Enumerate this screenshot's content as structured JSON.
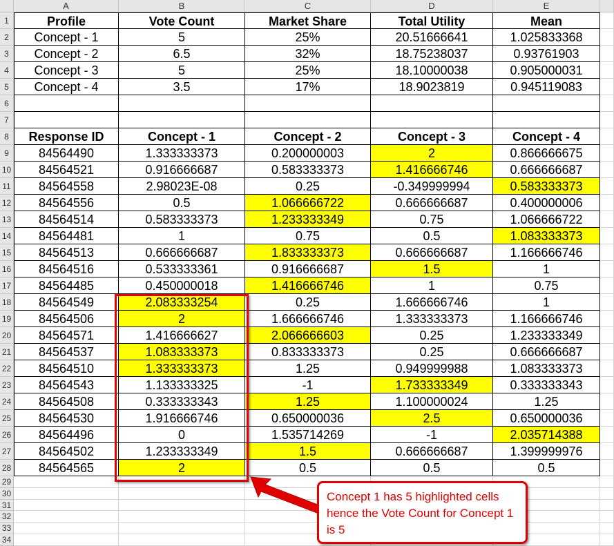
{
  "columns": [
    "A",
    "B",
    "C",
    "D",
    "E"
  ],
  "summary": {
    "headers": [
      "Profile",
      "Vote Count",
      "Market Share",
      "Total Utility",
      "Mean"
    ],
    "rows": [
      [
        "Concept - 1",
        "5",
        "25%",
        "20.51666641",
        "1.025833368"
      ],
      [
        "Concept - 2",
        "6.5",
        "32%",
        "18.75238037",
        "0.93761903"
      ],
      [
        "Concept - 3",
        "5",
        "25%",
        "18.10000038",
        "0.905000031"
      ],
      [
        "Concept - 4",
        "3.5",
        "17%",
        "18.9023819",
        "0.945119083"
      ]
    ]
  },
  "responses": {
    "headers": [
      "Response ID",
      "Concept - 1",
      "Concept - 2",
      "Concept - 3",
      "Concept - 4"
    ],
    "rows": [
      [
        "84564490",
        "1.333333373",
        "0.200000003",
        "2",
        "0.866666675"
      ],
      [
        "84564521",
        "0.916666687",
        "0.583333373",
        "1.416666746",
        "0.666666687"
      ],
      [
        "84564558",
        "2.98023E-08",
        "0.25",
        "-0.349999994",
        "0.583333373"
      ],
      [
        "84564556",
        "0.5",
        "1.066666722",
        "0.666666687",
        "0.400000006"
      ],
      [
        "84564514",
        "0.583333373",
        "1.233333349",
        "0.75",
        "1.066666722"
      ],
      [
        "84564481",
        "1",
        "0.75",
        "0.5",
        "1.083333373"
      ],
      [
        "84564513",
        "0.666666687",
        "1.833333373",
        "0.666666687",
        "1.166666746"
      ],
      [
        "84564516",
        "0.533333361",
        "0.916666687",
        "1.5",
        "1"
      ],
      [
        "84564485",
        "0.450000018",
        "1.416666746",
        "1",
        "0.75"
      ],
      [
        "84564549",
        "2.083333254",
        "0.25",
        "1.666666746",
        "1"
      ],
      [
        "84564506",
        "2",
        "1.666666746",
        "1.333333373",
        "1.166666746"
      ],
      [
        "84564571",
        "1.416666627",
        "2.066666603",
        "0.25",
        "1.233333349"
      ],
      [
        "84564537",
        "1.083333373",
        "0.833333373",
        "0.25",
        "0.666666687"
      ],
      [
        "84564510",
        "1.333333373",
        "1.25",
        "0.949999988",
        "1.083333373"
      ],
      [
        "84564543",
        "1.133333325",
        "-1",
        "1.733333349",
        "0.333333343"
      ],
      [
        "84564508",
        "0.333333343",
        "1.25",
        "1.100000024",
        "1.25"
      ],
      [
        "84564530",
        "1.916666746",
        "0.650000036",
        "2.5",
        "0.650000036"
      ],
      [
        "84564496",
        "0",
        "1.535714269",
        "-1",
        "2.035714388"
      ],
      [
        "84564502",
        "1.233333349",
        "1.5",
        "0.666666687",
        "1.399999976"
      ],
      [
        "84564565",
        "2",
        "0.5",
        "0.5",
        "0.5"
      ]
    ],
    "highlighted_column": [
      3,
      3,
      4,
      2,
      2,
      4,
      2,
      3,
      2,
      1,
      1,
      2,
      1,
      1,
      3,
      2,
      3,
      4,
      2,
      1
    ]
  },
  "annotation": {
    "text": "Concept 1 has 5 highlighted cells hence the Vote Count for Concept 1 is 5"
  },
  "colors": {
    "highlight": "#ffff00",
    "annotation": "#e00000"
  }
}
